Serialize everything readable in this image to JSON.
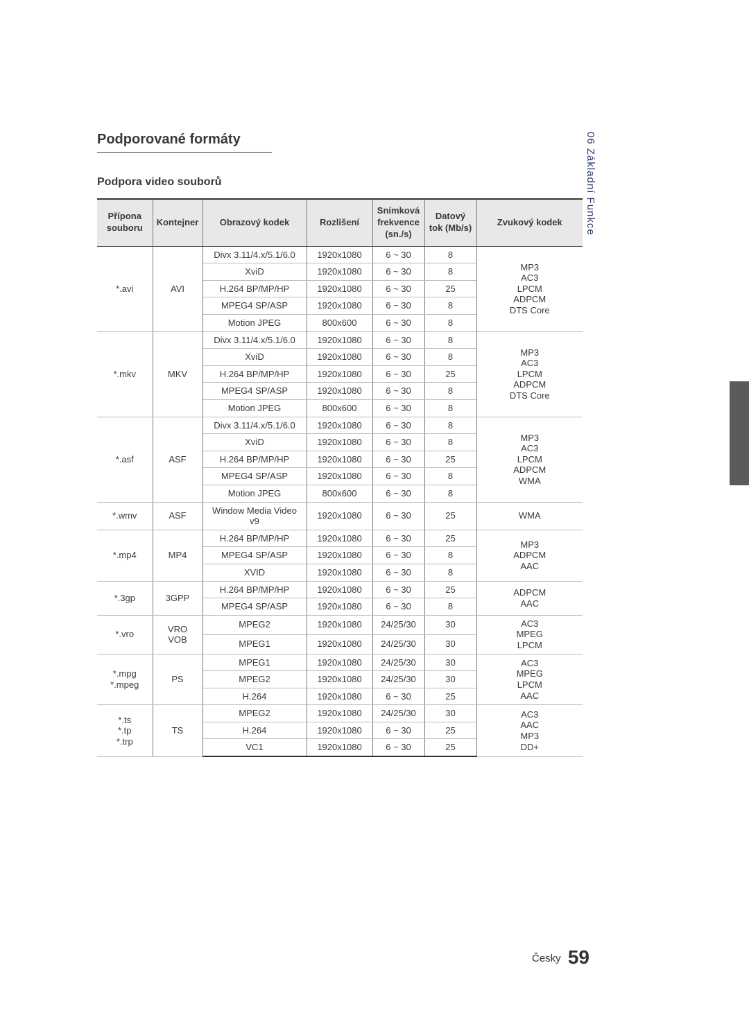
{
  "sideTab": "06  Základní Funkce",
  "sectionTitle": "Podporované formáty",
  "subHeading": "Podpora video souborů",
  "footer": {
    "lang": "Česky",
    "page": "59"
  },
  "headers": {
    "ext": "Přípona souboru",
    "container": "Kontejner",
    "vcodec": "Obrazový kodek",
    "res": "Rozlišení",
    "fps": "Snímková frekvence (sn./s)",
    "bitrate": "Datový tok (Mb/s)",
    "acodec": "Zvukový kodek"
  },
  "audioGroups": {
    "dts": "MP3\nAC3\nLPCM\nADPCM\nDTS Core",
    "wma": "MP3\nAC3\nLPCM\nADPCM\nWMA",
    "wmaOnly": "WMA",
    "mp4": "MP3\nADPCM\nAAC",
    "gp3": "ADPCM\nAAC",
    "vro": "AC3\nMPEG\nLPCM",
    "ps": "AC3\nMPEG\nLPCM\nAAC",
    "ts": "AC3\nAAC\nMP3\nDD+"
  },
  "codecs": {
    "divx": "Divx 3.11/4.x/5.1/6.0",
    "xvid": "XviD",
    "h264": "H.264 BP/MP/HP",
    "h264s": "H.264",
    "mpeg4": "MPEG4 SP/ASP",
    "mjpeg": "Motion JPEG",
    "wmv9": "Window Media Video v9",
    "xvidU": "XVID",
    "mpeg2": "MPEG2",
    "mpeg1": "MPEG1",
    "vc1": "VC1"
  },
  "res": {
    "hd": "1920x1080",
    "sd": "800x600"
  },
  "fps": {
    "r": "6 ~ 30",
    "f": "24/25/30"
  },
  "br": {
    "b8": "8",
    "b25": "25",
    "b30": "30"
  },
  "ext": {
    "avi": "*.avi",
    "mkv": "*.mkv",
    "asf": "*.asf",
    "wmv": "*.wmv",
    "mp4": "*.mp4",
    "gp3": "*.3gp",
    "vro": "*.vro",
    "mpg": "*.mpg\n*.mpeg",
    "ts": "*.ts\n*.tp\n*.trp"
  },
  "cont": {
    "avi": "AVI",
    "mkv": "MKV",
    "asf": "ASF",
    "mp4": "MP4",
    "gp3": "3GPP",
    "vro": "VRO\nVOB",
    "ps": "PS",
    "ts": "TS"
  }
}
